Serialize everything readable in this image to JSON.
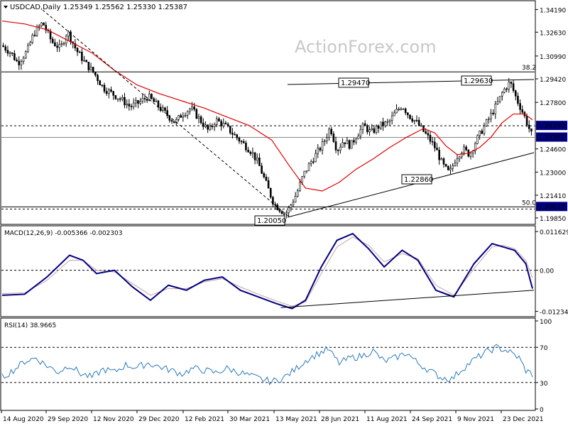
{
  "header": {
    "symbol": "USDCAD,Daily",
    "ohlc": "1.25349 1.25562 1.25330 1.25387",
    "watermark": "ActionForex.com"
  },
  "colors": {
    "candles": "#000000",
    "ma": "#e00000",
    "macd": "#000080",
    "signal": "#c8a0a8",
    "rsi": "#2a7ab8",
    "badge_bg": "#000080"
  },
  "chart_data": [
    {
      "type": "candlestick",
      "title": "USDCAD,Daily 1.25349 1.25562 1.25330 1.25387",
      "ylim": [
        1.196,
        1.346
      ],
      "y_ticks": [
        "1.34190",
        "1.32630",
        "1.30990",
        "1.29420",
        "1.27800",
        "1.26190",
        "1.24600",
        "1.23000",
        "1.21410",
        "1.19850"
      ],
      "x_ticks": [
        "14 Aug 2020",
        "29 Sep 2020",
        "12 Nov 2020",
        "29 Dec 2020",
        "12 Feb 2021",
        "30 Mar 2021",
        "13 May 2021",
        "28 Jun 2021",
        "11 Aug 2021",
        "24 Sep 2021",
        "9 Nov 2021",
        "23 Dec 2021"
      ],
      "close_path": [
        [
          0,
          1.317
        ],
        [
          8,
          1.312
        ],
        [
          14,
          1.305
        ],
        [
          22,
          1.313
        ],
        [
          28,
          1.325
        ],
        [
          36,
          1.333
        ],
        [
          44,
          1.32
        ],
        [
          52,
          1.315
        ],
        [
          58,
          1.327
        ],
        [
          66,
          1.314
        ],
        [
          74,
          1.305
        ],
        [
          82,
          1.298
        ],
        [
          90,
          1.288
        ],
        [
          98,
          1.284
        ],
        [
          106,
          1.28
        ],
        [
          114,
          1.275
        ],
        [
          122,
          1.278
        ],
        [
          130,
          1.282
        ],
        [
          138,
          1.276
        ],
        [
          146,
          1.27
        ],
        [
          154,
          1.264
        ],
        [
          160,
          1.27
        ],
        [
          168,
          1.274
        ],
        [
          176,
          1.266
        ],
        [
          184,
          1.258
        ],
        [
          190,
          1.266
        ],
        [
          198,
          1.262
        ],
        [
          206,
          1.256
        ],
        [
          214,
          1.25
        ],
        [
          222,
          1.244
        ],
        [
          228,
          1.236
        ],
        [
          236,
          1.22
        ],
        [
          242,
          1.208
        ],
        [
          248,
          1.204
        ],
        [
          252,
          1.201
        ],
        [
          256,
          1.206
        ],
        [
          262,
          1.215
        ],
        [
          268,
          1.228
        ],
        [
          274,
          1.236
        ],
        [
          280,
          1.243
        ],
        [
          286,
          1.25
        ],
        [
          292,
          1.261
        ],
        [
          298,
          1.245
        ],
        [
          304,
          1.252
        ],
        [
          310,
          1.248
        ],
        [
          316,
          1.256
        ],
        [
          322,
          1.262
        ],
        [
          328,
          1.257
        ],
        [
          336,
          1.262
        ],
        [
          344,
          1.264
        ],
        [
          350,
          1.271
        ],
        [
          356,
          1.276
        ],
        [
          362,
          1.269
        ],
        [
          368,
          1.265
        ],
        [
          374,
          1.259
        ],
        [
          380,
          1.253
        ],
        [
          386,
          1.246
        ],
        [
          392,
          1.235
        ],
        [
          398,
          1.229
        ],
        [
          404,
          1.24
        ],
        [
          410,
          1.246
        ],
        [
          416,
          1.242
        ],
        [
          422,
          1.252
        ],
        [
          428,
          1.26
        ],
        [
          434,
          1.268
        ],
        [
          440,
          1.276
        ],
        [
          446,
          1.286
        ],
        [
          452,
          1.292
        ],
        [
          458,
          1.28
        ],
        [
          464,
          1.27
        ],
        [
          468,
          1.262
        ],
        [
          472,
          1.254
        ]
      ],
      "close_x_domain": [
        0,
        472
      ],
      "moving_average": [
        [
          0,
          1.334
        ],
        [
          20,
          1.332
        ],
        [
          40,
          1.328
        ],
        [
          60,
          1.32
        ],
        [
          80,
          1.312
        ],
        [
          100,
          1.3
        ],
        [
          120,
          1.29
        ],
        [
          140,
          1.284
        ],
        [
          160,
          1.279
        ],
        [
          180,
          1.274
        ],
        [
          200,
          1.268
        ],
        [
          220,
          1.262
        ],
        [
          240,
          1.252
        ],
        [
          255,
          1.235
        ],
        [
          270,
          1.219
        ],
        [
          285,
          1.217
        ],
        [
          300,
          1.223
        ],
        [
          315,
          1.232
        ],
        [
          330,
          1.239
        ],
        [
          345,
          1.247
        ],
        [
          360,
          1.254
        ],
        [
          375,
          1.26
        ],
        [
          385,
          1.257
        ],
        [
          395,
          1.248
        ],
        [
          405,
          1.242
        ],
        [
          415,
          1.243
        ],
        [
          425,
          1.247
        ],
        [
          435,
          1.254
        ],
        [
          445,
          1.264
        ],
        [
          455,
          1.27
        ],
        [
          465,
          1.27
        ],
        [
          472,
          1.266
        ]
      ],
      "horizontal_levels": [
        {
          "label": "38.2",
          "value": 1.299,
          "style": "solid"
        },
        {
          "label": "1.26190",
          "value": 1.2619,
          "style": "dashed"
        },
        {
          "label": "1.25387",
          "value": 1.2539,
          "style": "solid"
        },
        {
          "label": "50.0",
          "value": 1.2061,
          "style": "solid"
        },
        {
          "label": "1.20610",
          "value": 1.2061,
          "style": "dashed"
        }
      ],
      "annotations": [
        "1.29470",
        "1.29630",
        "1.22860",
        "1.20050"
      ],
      "badges": [
        "1.26190",
        "1.25387",
        "1.20610"
      ]
    },
    {
      "type": "line",
      "title": "MACD(12,26,9) -0.005366 -0.002303",
      "ylim": [
        -0.0135,
        0.0125
      ],
      "y_ticks": [
        "0.011629",
        "0.00",
        "-0.012348"
      ],
      "series": [
        {
          "name": "MACD",
          "values": [
            [
              0,
              -0.0075
            ],
            [
              20,
              -0.0072
            ],
            [
              40,
              -0.002
            ],
            [
              60,
              0.0045
            ],
            [
              72,
              0.003
            ],
            [
              84,
              -0.001
            ],
            [
              100,
              0.0
            ],
            [
              116,
              -0.005
            ],
            [
              132,
              -0.009
            ],
            [
              148,
              -0.0045
            ],
            [
              164,
              -0.006
            ],
            [
              180,
              -0.003
            ],
            [
              196,
              -0.002
            ],
            [
              212,
              -0.006
            ],
            [
              228,
              -0.008
            ],
            [
              244,
              -0.01
            ],
            [
              258,
              -0.0115
            ],
            [
              270,
              -0.009
            ],
            [
              284,
              0.001
            ],
            [
              298,
              0.009
            ],
            [
              312,
              0.011
            ],
            [
              326,
              0.0065
            ],
            [
              340,
              0.001
            ],
            [
              356,
              0.006
            ],
            [
              370,
              0.003
            ],
            [
              386,
              -0.006
            ],
            [
              402,
              -0.008
            ],
            [
              420,
              0.002
            ],
            [
              436,
              0.008
            ],
            [
              446,
              0.007
            ],
            [
              456,
              0.006
            ],
            [
              466,
              0.002
            ],
            [
              472,
              -0.0055
            ]
          ]
        },
        {
          "name": "Signal",
          "values": [
            [
              0,
              -0.007
            ],
            [
              20,
              -0.0068
            ],
            [
              40,
              -0.003
            ],
            [
              60,
              0.003
            ],
            [
              72,
              0.003
            ],
            [
              84,
              0.0
            ],
            [
              100,
              -0.0005
            ],
            [
              116,
              -0.004
            ],
            [
              132,
              -0.0075
            ],
            [
              148,
              -0.0055
            ],
            [
              164,
              -0.0055
            ],
            [
              180,
              -0.0035
            ],
            [
              196,
              -0.0025
            ],
            [
              212,
              -0.005
            ],
            [
              228,
              -0.0072
            ],
            [
              244,
              -0.0092
            ],
            [
              258,
              -0.0108
            ],
            [
              270,
              -0.0095
            ],
            [
              284,
              -0.001
            ],
            [
              298,
              0.007
            ],
            [
              312,
              0.01
            ],
            [
              326,
              0.0075
            ],
            [
              340,
              0.0025
            ],
            [
              356,
              0.005
            ],
            [
              370,
              0.0035
            ],
            [
              386,
              -0.0045
            ],
            [
              402,
              -0.0075
            ],
            [
              420,
              0.0005
            ],
            [
              436,
              0.007
            ],
            [
              446,
              0.0075
            ],
            [
              456,
              0.0065
            ],
            [
              466,
              0.003
            ],
            [
              472,
              -0.0023
            ]
          ]
        }
      ]
    },
    {
      "type": "line",
      "title": "RSI(14) 38.9665",
      "ylim": [
        0,
        100
      ],
      "y_ticks": [
        "100",
        "70",
        "30",
        "0"
      ],
      "levels": [
        70,
        30
      ],
      "series": [
        {
          "name": "RSI",
          "values": [
            [
              0,
              36
            ],
            [
              10,
              44
            ],
            [
              20,
              54
            ],
            [
              30,
              58
            ],
            [
              40,
              49
            ],
            [
              50,
              42
            ],
            [
              60,
              50
            ],
            [
              70,
              40
            ],
            [
              80,
              36
            ],
            [
              90,
              45
            ],
            [
              100,
              42
            ],
            [
              110,
              50
            ],
            [
              120,
              47
            ],
            [
              130,
              52
            ],
            [
              140,
              48
            ],
            [
              150,
              44
            ],
            [
              160,
              40
            ],
            [
              170,
              46
            ],
            [
              180,
              44
            ],
            [
              190,
              41
            ],
            [
              200,
              46
            ],
            [
              210,
              42
            ],
            [
              220,
              38
            ],
            [
              230,
              34
            ],
            [
              240,
              31
            ],
            [
              250,
              35
            ],
            [
              260,
              44
            ],
            [
              270,
              55
            ],
            [
              280,
              62
            ],
            [
              290,
              68
            ],
            [
              300,
              52
            ],
            [
              310,
              58
            ],
            [
              320,
              60
            ],
            [
              330,
              66
            ],
            [
              340,
              54
            ],
            [
              350,
              58
            ],
            [
              360,
              64
            ],
            [
              370,
              52
            ],
            [
              380,
              44
            ],
            [
              390,
              36
            ],
            [
              400,
              34
            ],
            [
              410,
              46
            ],
            [
              420,
              56
            ],
            [
              430,
              64
            ],
            [
              440,
              70
            ],
            [
              450,
              66
            ],
            [
              460,
              58
            ],
            [
              466,
              44
            ],
            [
              472,
              39
            ]
          ]
        }
      ]
    }
  ]
}
